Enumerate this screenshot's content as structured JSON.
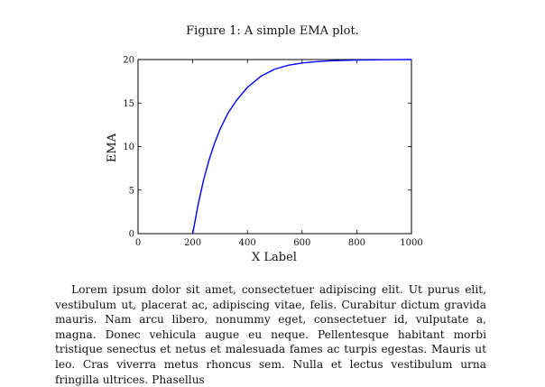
{
  "figure": {
    "caption": "Figure 1: A simple EMA plot."
  },
  "chart_data": {
    "type": "line",
    "xlabel": "X Label",
    "ylabel": "EMA",
    "xlim": [
      0,
      1000
    ],
    "ylim": [
      0,
      20
    ],
    "xticks": [
      0,
      200,
      400,
      600,
      800,
      1000
    ],
    "yticks": [
      0,
      5,
      10,
      15,
      20
    ],
    "grid": false,
    "series": [
      {
        "color": "#0000ff",
        "x": [
          200,
          220,
          240,
          260,
          280,
          300,
          330,
          360,
          400,
          450,
          500,
          550,
          600,
          650,
          700,
          750,
          800,
          850,
          900,
          950,
          1000
        ],
        "y": [
          0,
          3.4,
          6.2,
          8.5,
          10.4,
          12.0,
          13.9,
          15.3,
          16.8,
          18.1,
          18.9,
          19.35,
          19.6,
          19.75,
          19.85,
          19.9,
          19.94,
          19.96,
          19.98,
          19.99,
          20
        ]
      }
    ]
  },
  "body_text": "Lorem ipsum dolor sit amet, consectetuer adipiscing elit. Ut purus elit, vestibulum ut, placerat ac, adipiscing vitae, felis. Curabitur dictum gravida mauris. Nam arcu libero, nonummy eget, consectetuer id, vulputate a, magna. Donec vehicula augue eu neque. Pellentesque habitant morbi tristique senectus et netus et malesuada fames ac turpis egestas. Mauris ut leo. Cras viverra metus rhoncus sem. Nulla et lectus vestibulum urna fringilla ultrices. Phasellus"
}
